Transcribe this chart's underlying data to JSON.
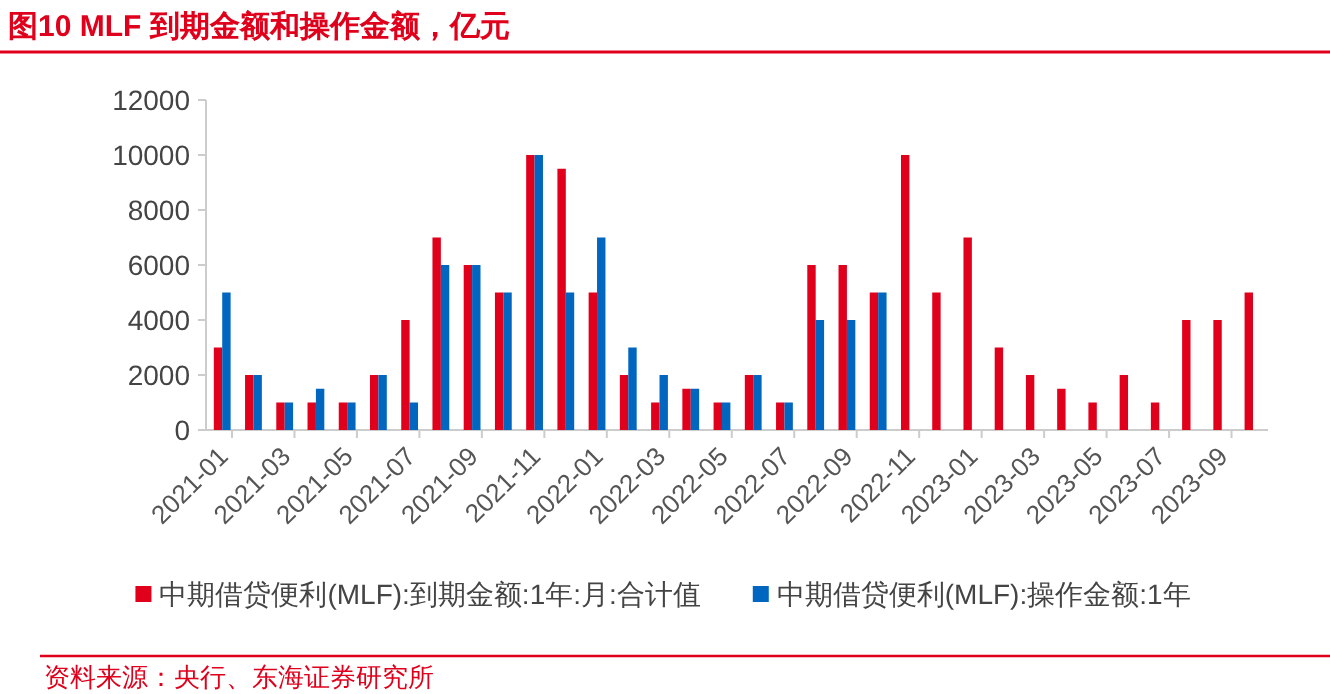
{
  "chart_data": {
    "type": "bar",
    "title": "图10  MLF 到期金额和操作金额，亿元",
    "categories": [
      "2021-01",
      null,
      "2021-03",
      null,
      "2021-05",
      null,
      "2021-07",
      null,
      "2021-09",
      null,
      "2021-11",
      null,
      "2022-01",
      null,
      "2022-03",
      null,
      "2022-05",
      null,
      "2022-07",
      null,
      "2022-09",
      null,
      "2022-11",
      null,
      "2023-01",
      null,
      "2023-03",
      null,
      "2023-05",
      null,
      "2023-07",
      null,
      "2023-09",
      null
    ],
    "series": [
      {
        "name": "中期借贷便利(MLF):到期金额:1年:月:合计值",
        "color": "#e0001b",
        "values": [
          3000,
          2000,
          1000,
          1000,
          1000,
          2000,
          4000,
          7000,
          6000,
          5000,
          10000,
          9500,
          5000,
          2000,
          1000,
          1500,
          1000,
          2000,
          1000,
          6000,
          6000,
          5000,
          10000,
          5000,
          7000,
          3000,
          2000,
          1500,
          1000,
          2000,
          1000,
          4000,
          4000,
          5000
        ]
      },
      {
        "name": "中期借贷便利(MLF):操作金额:1年",
        "color": "#0066c0",
        "values": [
          5000,
          2000,
          1000,
          1500,
          1000,
          2000,
          1000,
          6000,
          6000,
          5000,
          10000,
          5000,
          7000,
          3000,
          2000,
          1500,
          1000,
          2000,
          1000,
          4000,
          4000,
          5000,
          null,
          null,
          null,
          null,
          null,
          null,
          null,
          null,
          null,
          null,
          null,
          null
        ]
      }
    ],
    "ylim": [
      0,
      12000
    ],
    "yticks": [
      0,
      2000,
      4000,
      6000,
      8000,
      10000,
      12000
    ],
    "grid": false,
    "legend": "bottom",
    "annotations": [
      "资料来源：央行、东海证券研究所"
    ]
  }
}
